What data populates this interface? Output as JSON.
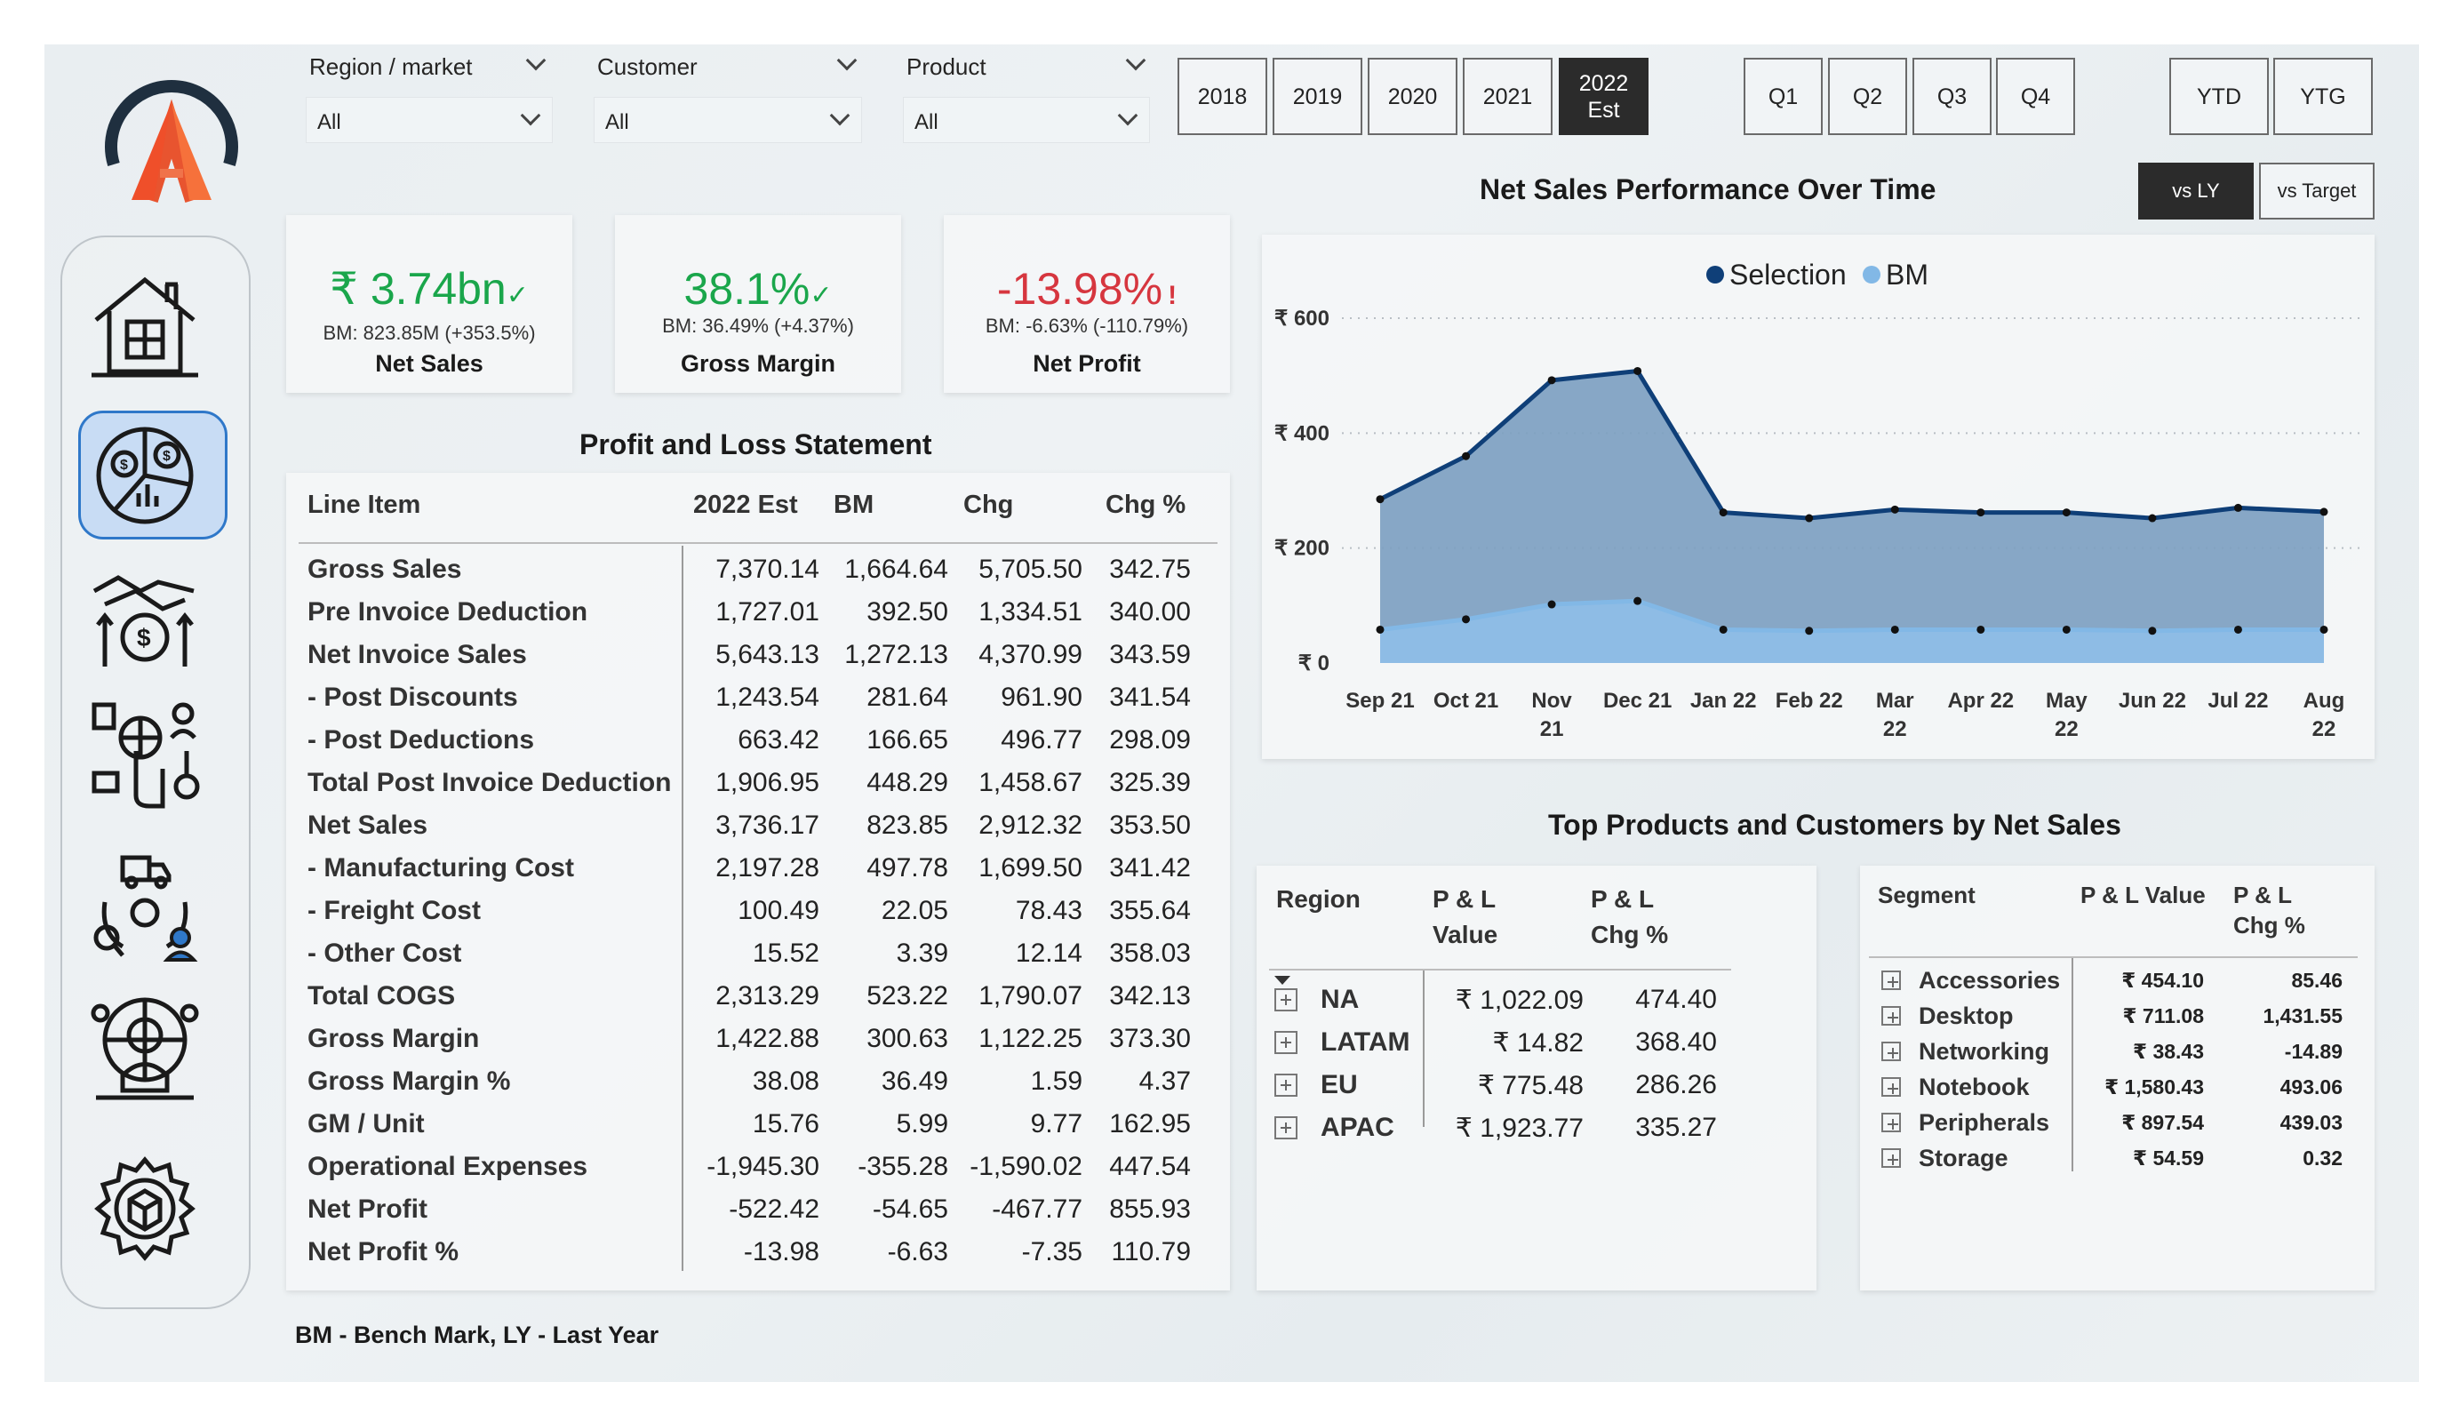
{
  "filters": {
    "region": {
      "label": "Region / market",
      "value": "All"
    },
    "customer": {
      "label": "Customer",
      "value": "All"
    },
    "product": {
      "label": "Product",
      "value": "All"
    }
  },
  "years": [
    "2018",
    "2019",
    "2020",
    "2021",
    "2022 Est"
  ],
  "selected_year": "2022 Est",
  "quarters": [
    "Q1",
    "Q2",
    "Q3",
    "Q4"
  ],
  "period_buttons": [
    "YTD",
    "YTG"
  ],
  "compare_buttons": [
    "vs LY",
    "vs Target"
  ],
  "selected_compare": "vs LY",
  "kpis": {
    "net_sales": {
      "value": "₹ 3.74bn",
      "bm": "BM: 823.85M (+353.5%)",
      "name": "Net Sales",
      "status": "up",
      "color": "#1aa64b"
    },
    "gross_margin": {
      "value": "38.1%",
      "bm": "BM: 36.49% (+4.37%)",
      "name": "Gross Margin",
      "status": "up",
      "color": "#1aa64b"
    },
    "net_profit": {
      "value": "-13.98%",
      "bm": "BM: -6.63% (-110.79%)",
      "name": "Net Profit",
      "status": "down",
      "color": "#d6363f"
    }
  },
  "pl": {
    "title": "Profit and Loss Statement",
    "columns": [
      "Line Item",
      "2022 Est",
      "BM",
      "Chg",
      "Chg %"
    ],
    "rows": [
      [
        "Gross Sales",
        "7,370.14",
        "1,664.64",
        "5,705.50",
        "342.75"
      ],
      [
        "Pre Invoice Deduction",
        "1,727.01",
        "392.50",
        "1,334.51",
        "340.00"
      ],
      [
        "Net Invoice Sales",
        "5,643.13",
        "1,272.13",
        "4,370.99",
        "343.59"
      ],
      [
        "- Post Discounts",
        "1,243.54",
        "281.64",
        "961.90",
        "341.54"
      ],
      [
        "- Post Deductions",
        "663.42",
        "166.65",
        "496.77",
        "298.09"
      ],
      [
        "Total Post Invoice Deduction",
        "1,906.95",
        "448.29",
        "1,458.67",
        "325.39"
      ],
      [
        "Net Sales",
        "3,736.17",
        "823.85",
        "2,912.32",
        "353.50"
      ],
      [
        "- Manufacturing Cost",
        "2,197.28",
        "497.78",
        "1,699.50",
        "341.42"
      ],
      [
        "- Freight Cost",
        "100.49",
        "22.05",
        "78.43",
        "355.64"
      ],
      [
        "- Other Cost",
        "15.52",
        "3.39",
        "12.14",
        "358.03"
      ],
      [
        "Total COGS",
        "2,313.29",
        "523.22",
        "1,790.07",
        "342.13"
      ],
      [
        "Gross Margin",
        "1,422.88",
        "300.63",
        "1,122.25",
        "373.30"
      ],
      [
        "Gross Margin %",
        "38.08",
        "36.49",
        "1.59",
        "4.37"
      ],
      [
        "GM / Unit",
        "15.76",
        "5.99",
        "9.77",
        "162.95"
      ],
      [
        "Operational Expenses",
        "-1,945.30",
        "-355.28",
        "-1,590.02",
        "447.54"
      ],
      [
        "Net Profit",
        "-522.42",
        "-54.65",
        "-467.77",
        "855.93"
      ],
      [
        "Net Profit %",
        "-13.98",
        "-6.63",
        "-7.35",
        "110.79"
      ]
    ]
  },
  "chart_data": {
    "type": "area",
    "title": "Net Sales Performance Over Time",
    "categories": [
      "Sep 21",
      "Oct 21",
      "Nov 21",
      "Dec 21",
      "Jan 22",
      "Feb 22",
      "Mar 22",
      "Apr 22",
      "May 22",
      "Jun 22",
      "Jul 22",
      "Aug 22"
    ],
    "category_lines": [
      [
        "Sep 21"
      ],
      [
        "Oct 21"
      ],
      [
        "Nov",
        "21"
      ],
      [
        "Dec 21"
      ],
      [
        "Jan 22"
      ],
      [
        "Feb 22"
      ],
      [
        "Mar",
        "22"
      ],
      [
        "Apr 22"
      ],
      [
        "May",
        "22"
      ],
      [
        "Jun 22"
      ],
      [
        "Jul 22"
      ],
      [
        "Aug",
        "22"
      ]
    ],
    "series": [
      {
        "name": "Selection",
        "color": "#0f3f78",
        "fill": "#7b9ec0",
        "values": [
          285,
          360,
          492,
          508,
          262,
          252,
          267,
          262,
          262,
          252,
          270,
          263
        ]
      },
      {
        "name": "BM",
        "color": "#82b8e6",
        "fill": "#8fc0ea",
        "values": [
          58,
          76,
          102,
          108,
          58,
          56,
          58,
          58,
          58,
          56,
          58,
          58
        ]
      }
    ],
    "y_ticks": [
      "₹ 0",
      "₹ 200",
      "₹ 400",
      "₹ 600"
    ],
    "y_tick_values": [
      0,
      200,
      400,
      600
    ],
    "ylim": [
      0,
      600
    ],
    "grid": true,
    "legend_position": "top-center"
  },
  "top_title": "Top Products and Customers by Net Sales",
  "region_table": {
    "headers": [
      "Region",
      "P & L Value",
      "P & L Chg %"
    ],
    "header_lines": [
      [
        "Region"
      ],
      [
        "P & L",
        "Value"
      ],
      [
        "P & L",
        "Chg %"
      ]
    ],
    "rows": [
      [
        "NA",
        "₹ 1,022.09",
        "474.40"
      ],
      [
        "LATAM",
        "₹ 14.82",
        "368.40"
      ],
      [
        "EU",
        "₹ 775.48",
        "286.26"
      ],
      [
        "APAC",
        "₹ 1,923.77",
        "335.27"
      ]
    ]
  },
  "segment_table": {
    "headers": [
      "Segment",
      "P & L Value",
      "P & L Chg %"
    ],
    "header_lines": [
      [
        "Segment"
      ],
      [
        "P & L Value"
      ],
      [
        "P & L",
        "Chg %"
      ]
    ],
    "rows": [
      [
        "Accessories",
        "₹ 454.10",
        "85.46"
      ],
      [
        "Desktop",
        "₹ 711.08",
        "1,431.55"
      ],
      [
        "Networking",
        "₹ 38.43",
        "-14.89"
      ],
      [
        "Notebook",
        "₹ 1,580.43",
        "493.06"
      ],
      [
        "Peripherals",
        "₹ 897.54",
        "439.03"
      ],
      [
        "Storage",
        "₹ 54.59",
        "0.32"
      ]
    ]
  },
  "footer_note": "BM - Bench Mark, LY - Last Year",
  "sidebar": [
    "home-icon",
    "finance-icon",
    "sales-icon",
    "marketing-icon",
    "supply-chain-icon",
    "executive-icon",
    "settings-icon"
  ]
}
